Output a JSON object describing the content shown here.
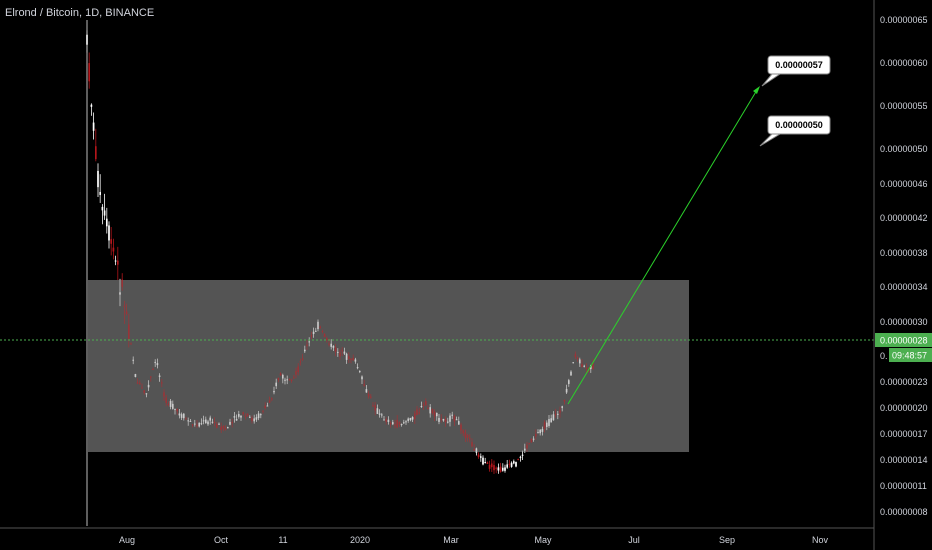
{
  "legend": {
    "symbol": "Elrond / Bitcoin, 1D, BINANCE"
  },
  "colors": {
    "background": "#000000",
    "box": "#6b6b6b",
    "up": "#ffffff",
    "down": "#b4161b",
    "target": "#2bd12b",
    "priceTag": "#4caf50"
  },
  "current": {
    "price": "0.00000028",
    "countdown": "09:48:57",
    "clipped": "0."
  },
  "callouts": [
    {
      "label": "0.00000057"
    },
    {
      "label": "0.00000050"
    }
  ],
  "chart_data": {
    "type": "candlestick",
    "title": "Elrond / Bitcoin, 1D, BINANCE",
    "x_ticks": [
      "Aug",
      "Oct",
      "11",
      "2020",
      "Mar",
      "May",
      "Jul",
      "Sep",
      "Nov"
    ],
    "y_ticks": [
      "0.00000065",
      "0.00000060",
      "0.00000055",
      "0.00000050",
      "0.00000046",
      "0.00000042",
      "0.00000038",
      "0.00000034",
      "0.00000030",
      "0.00000028",
      "0.00000023",
      "0.00000020",
      "0.00000017",
      "0.00000014",
      "0.00000011",
      "0.00000008"
    ],
    "y_scale": "log",
    "range_box": {
      "top": 3.4e-07,
      "bottom": 1.45e-07,
      "start": "2019-07-05",
      "end": "2020-08-15"
    },
    "projection": {
      "from_price": 2e-07,
      "to_price": 5.7e-07,
      "from_date": "2020-05-10",
      "to_date": "2020-09-15"
    }
  }
}
